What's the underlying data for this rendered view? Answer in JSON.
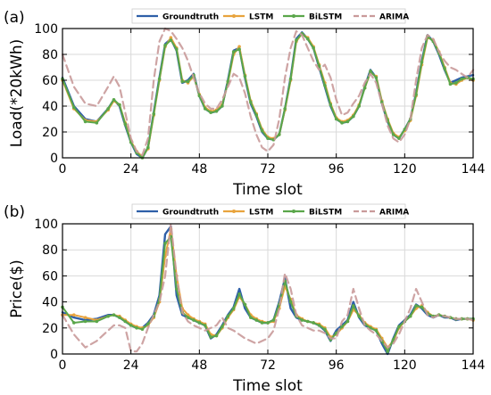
{
  "chart_data": [
    {
      "type": "line",
      "panel_label": "(a)",
      "xlabel": "Time slot",
      "ylabel": "Load(*20kWh)",
      "xlim": [
        0,
        144
      ],
      "ylim": [
        0,
        100
      ],
      "xticks": [
        0,
        24,
        48,
        72,
        96,
        120,
        144
      ],
      "yticks": [
        0,
        20,
        40,
        60,
        80,
        100
      ],
      "grid": true,
      "legend_position": "top-center",
      "x": [
        0,
        4,
        8,
        12,
        16,
        18,
        20,
        22,
        24,
        26,
        28,
        30,
        32,
        34,
        36,
        38,
        40,
        42,
        44,
        46,
        48,
        50,
        52,
        54,
        56,
        58,
        60,
        62,
        64,
        66,
        68,
        70,
        72,
        74,
        76,
        78,
        80,
        82,
        84,
        86,
        88,
        90,
        92,
        94,
        96,
        98,
        100,
        102,
        104,
        106,
        108,
        110,
        112,
        114,
        116,
        118,
        120,
        122,
        124,
        126,
        128,
        130,
        132,
        134,
        136,
        138,
        140,
        142,
        144
      ],
      "series": [
        {
          "name": "Groundtruth",
          "color": "#2e5fa8",
          "style": "solid",
          "values": [
            62,
            40,
            30,
            28,
            38,
            45,
            40,
            25,
            12,
            3,
            0,
            8,
            35,
            62,
            88,
            92,
            83,
            58,
            60,
            65,
            48,
            38,
            35,
            36,
            40,
            60,
            83,
            85,
            62,
            42,
            32,
            20,
            15,
            14,
            18,
            38,
            62,
            92,
            97,
            92,
            85,
            70,
            55,
            40,
            30,
            27,
            28,
            32,
            40,
            55,
            68,
            62,
            42,
            28,
            18,
            15,
            22,
            30,
            50,
            75,
            95,
            90,
            80,
            68,
            58,
            60,
            62,
            63,
            64
          ]
        },
        {
          "name": "LSTM",
          "color": "#e8a33d",
          "style": "solid-dot",
          "values": [
            60,
            38,
            29,
            28,
            37,
            44,
            41,
            27,
            13,
            5,
            1,
            7,
            33,
            60,
            86,
            93,
            85,
            60,
            58,
            63,
            49,
            39,
            36,
            37,
            41,
            58,
            80,
            86,
            64,
            44,
            34,
            22,
            16,
            15,
            18,
            37,
            60,
            90,
            96,
            93,
            86,
            72,
            58,
            42,
            31,
            28,
            29,
            33,
            41,
            54,
            66,
            63,
            44,
            30,
            19,
            16,
            21,
            29,
            48,
            72,
            93,
            91,
            82,
            70,
            58,
            57,
            60,
            62,
            60
          ]
        },
        {
          "name": "BiLSTM",
          "color": "#5aa64a",
          "style": "solid-dot",
          "values": [
            61,
            39,
            28,
            27,
            38,
            45,
            41,
            26,
            12,
            4,
            0,
            8,
            34,
            61,
            87,
            91,
            84,
            59,
            59,
            64,
            48,
            38,
            35,
            36,
            40,
            59,
            82,
            84,
            63,
            43,
            33,
            21,
            15,
            14,
            18,
            38,
            61,
            91,
            96,
            92,
            85,
            71,
            56,
            41,
            30,
            27,
            28,
            32,
            40,
            54,
            67,
            62,
            43,
            29,
            18,
            15,
            22,
            30,
            49,
            74,
            94,
            90,
            81,
            69,
            57,
            58,
            61,
            62,
            61
          ]
        },
        {
          "name": "ARIMA",
          "color": "#c99a9a",
          "style": "dashed",
          "values": [
            80,
            55,
            42,
            40,
            55,
            63,
            55,
            35,
            15,
            5,
            2,
            15,
            60,
            90,
            100,
            98,
            92,
            85,
            75,
            62,
            50,
            42,
            38,
            38,
            45,
            55,
            65,
            62,
            50,
            32,
            18,
            8,
            5,
            10,
            30,
            62,
            85,
            98,
            95,
            85,
            75,
            68,
            72,
            62,
            45,
            33,
            35,
            42,
            48,
            58,
            65,
            58,
            42,
            25,
            15,
            12,
            18,
            30,
            60,
            85,
            95,
            92,
            82,
            75,
            70,
            68,
            65,
            62,
            68
          ]
        }
      ]
    },
    {
      "type": "line",
      "panel_label": "(b)",
      "xlabel": "Time slot",
      "ylabel": "Price($)",
      "xlim": [
        0,
        144
      ],
      "ylim": [
        0,
        100
      ],
      "xticks": [
        0,
        24,
        48,
        72,
        96,
        120,
        144
      ],
      "yticks": [
        0,
        20,
        40,
        60,
        80,
        100
      ],
      "grid": true,
      "legend_position": "top-center",
      "x": [
        0,
        4,
        8,
        12,
        16,
        18,
        20,
        22,
        24,
        26,
        28,
        30,
        32,
        34,
        36,
        38,
        40,
        42,
        44,
        46,
        48,
        50,
        52,
        54,
        56,
        58,
        60,
        62,
        64,
        66,
        68,
        70,
        72,
        74,
        76,
        78,
        80,
        82,
        84,
        86,
        88,
        90,
        92,
        94,
        96,
        98,
        100,
        102,
        104,
        106,
        108,
        110,
        112,
        114,
        116,
        118,
        120,
        122,
        124,
        126,
        128,
        130,
        132,
        134,
        136,
        138,
        140,
        142,
        144
      ],
      "series": [
        {
          "name": "Groundtruth",
          "color": "#2e5fa8",
          "style": "solid",
          "values": [
            32,
            28,
            26,
            27,
            30,
            30,
            28,
            25,
            22,
            20,
            20,
            24,
            30,
            45,
            92,
            98,
            45,
            30,
            28,
            26,
            24,
            22,
            12,
            15,
            22,
            30,
            36,
            50,
            35,
            28,
            26,
            24,
            24,
            26,
            40,
            58,
            35,
            28,
            26,
            25,
            24,
            22,
            18,
            10,
            18,
            22,
            26,
            40,
            28,
            22,
            20,
            18,
            8,
            0,
            12,
            22,
            26,
            30,
            38,
            35,
            30,
            28,
            30,
            28,
            28,
            26,
            27,
            27,
            27
          ]
        },
        {
          "name": "LSTM",
          "color": "#e8a33d",
          "style": "solid-dot",
          "values": [
            30,
            30,
            28,
            26,
            29,
            30,
            29,
            26,
            23,
            21,
            20,
            22,
            28,
            40,
            75,
            96,
            60,
            35,
            30,
            27,
            25,
            23,
            15,
            14,
            20,
            28,
            34,
            44,
            38,
            30,
            27,
            25,
            24,
            25,
            35,
            52,
            42,
            30,
            27,
            25,
            24,
            23,
            20,
            13,
            15,
            20,
            25,
            34,
            30,
            24,
            21,
            19,
            12,
            5,
            10,
            20,
            25,
            29,
            35,
            37,
            32,
            29,
            30,
            29,
            28,
            27,
            27,
            27,
            26
          ]
        },
        {
          "name": "BiLSTM",
          "color": "#5aa64a",
          "style": "solid-dot",
          "values": [
            36,
            24,
            25,
            25,
            29,
            30,
            28,
            25,
            22,
            20,
            19,
            23,
            29,
            42,
            85,
            90,
            50,
            32,
            28,
            26,
            24,
            22,
            13,
            14,
            21,
            29,
            35,
            46,
            38,
            28,
            26,
            24,
            24,
            26,
            38,
            56,
            40,
            29,
            26,
            25,
            24,
            22,
            19,
            11,
            16,
            21,
            25,
            37,
            29,
            23,
            20,
            18,
            10,
            2,
            11,
            21,
            25,
            29,
            37,
            36,
            31,
            29,
            30,
            29,
            28,
            27,
            27,
            27,
            27
          ]
        },
        {
          "name": "ARIMA",
          "color": "#c99a9a",
          "style": "dashed",
          "values": [
            30,
            15,
            5,
            10,
            18,
            22,
            22,
            20,
            2,
            2,
            8,
            20,
            30,
            40,
            60,
            100,
            60,
            32,
            25,
            22,
            20,
            18,
            20,
            22,
            28,
            20,
            18,
            15,
            12,
            10,
            8,
            10,
            12,
            18,
            35,
            62,
            50,
            30,
            22,
            20,
            18,
            18,
            16,
            12,
            12,
            25,
            30,
            50,
            35,
            22,
            18,
            15,
            10,
            5,
            8,
            15,
            25,
            35,
            50,
            40,
            30,
            28,
            30,
            29,
            28,
            27,
            27,
            27,
            26
          ]
        }
      ]
    }
  ]
}
